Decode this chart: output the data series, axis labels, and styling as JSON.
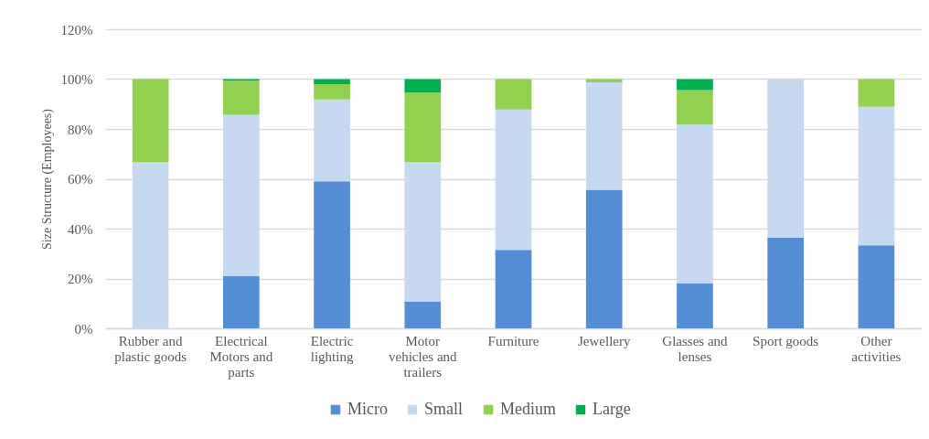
{
  "chart_data": {
    "type": "bar",
    "stacked": true,
    "ylabel": "Size Structure (Employees)",
    "categories": [
      "Rubber and plastic goods",
      "Electrical Motors and parts",
      "Electric lighting",
      "Motor vehicles and trailers",
      "Furniture",
      "Jewellery",
      "Glasses and lenses",
      "Sport goods",
      "Other activities"
    ],
    "series": [
      {
        "name": "Micro",
        "color": "#558ed5",
        "values": [
          null,
          21.0,
          59.0,
          10.8,
          31.5,
          55.6,
          18.0,
          36.4,
          33.3
        ]
      },
      {
        "name": "Small",
        "color": "#c6d9f1",
        "values": [
          66.7,
          64.7,
          32.8,
          55.9,
          56.3,
          43.1,
          63.7,
          63.6,
          55.6
        ]
      },
      {
        "name": "Medium",
        "color": "#92d050",
        "values": [
          33.3,
          13.7,
          6.2,
          27.9,
          12.2,
          1.3,
          13.9,
          null,
          11.1
        ]
      },
      {
        "name": "Large",
        "color": "#00b050",
        "values": [
          null,
          0.6,
          2.0,
          5.4,
          null,
          null,
          4.4,
          null,
          null
        ]
      }
    ],
    "ylim": [
      0,
      120
    ],
    "yticks": [
      {
        "value": 0,
        "label": "0%"
      },
      {
        "value": 20,
        "label": "20%"
      },
      {
        "value": 40,
        "label": "40%"
      },
      {
        "value": 60,
        "label": "60%"
      },
      {
        "value": 80,
        "label": "80%"
      },
      {
        "value": 100,
        "label": "100%"
      },
      {
        "value": 120,
        "label": "120%"
      }
    ],
    "grid": "y",
    "legend": "bottom"
  }
}
